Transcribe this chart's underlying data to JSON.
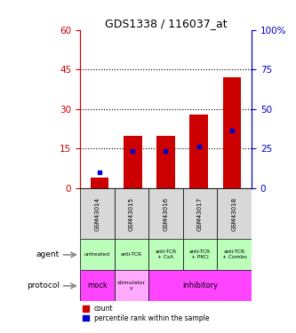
{
  "title": "GDS1338 / 116037_at",
  "samples": [
    "GSM43014",
    "GSM43015",
    "GSM43016",
    "GSM43017",
    "GSM43018"
  ],
  "count_values": [
    4,
    20,
    20,
    28,
    42
  ],
  "percentile_values": [
    6,
    14,
    14,
    16,
    22
  ],
  "left_yticks": [
    0,
    15,
    30,
    45,
    60
  ],
  "left_ycolor": "#cc0000",
  "right_yticks": [
    0,
    25,
    50,
    75,
    100
  ],
  "right_ycolor": "#0000cc",
  "agent_labels": [
    "untreated",
    "anti-TCR",
    "anti-TCR\n+ CsA",
    "anti-TCR\n+ PKCi",
    "anti-TCR\n+ Combo"
  ],
  "agent_bg": "#bbffbb",
  "sample_bg": "#d8d8d8",
  "bar_color": "#cc0000",
  "dot_color": "#0000cc",
  "proto_mock_color": "#ff44ff",
  "proto_stim_color": "#ffaaff",
  "proto_inhib_color": "#ff44ff"
}
